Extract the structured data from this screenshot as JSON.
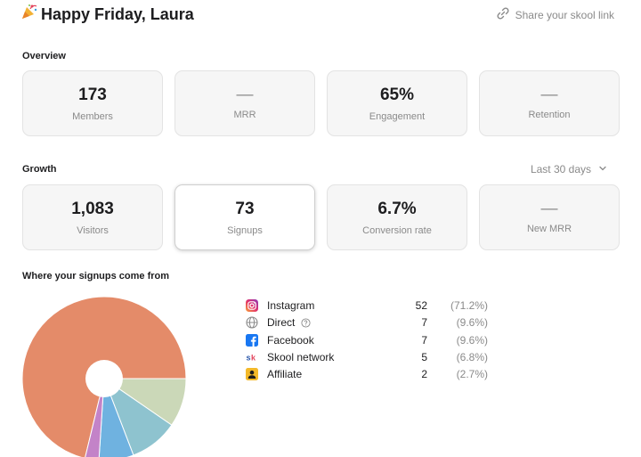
{
  "header": {
    "greeting": "Happy Friday, Laura",
    "share_label": "Share your skool link"
  },
  "overview": {
    "title": "Overview",
    "cards": [
      {
        "value": "173",
        "label": "Members"
      },
      {
        "value": "—",
        "label": "MRR"
      },
      {
        "value": "65%",
        "label": "Engagement"
      },
      {
        "value": "—",
        "label": "Retention"
      }
    ]
  },
  "growth": {
    "title": "Growth",
    "period": "Last 30 days",
    "cards": [
      {
        "value": "1,083",
        "label": "Visitors"
      },
      {
        "value": "73",
        "label": "Signups"
      },
      {
        "value": "6.7%",
        "label": "Conversion rate"
      },
      {
        "value": "—",
        "label": "New MRR"
      }
    ]
  },
  "signups": {
    "title": "Where your signups come from",
    "sources": [
      {
        "name": "Instagram",
        "count": "52",
        "percent": "(71.2%)",
        "icon": "instagram-icon"
      },
      {
        "name": "Direct",
        "count": "7",
        "percent": "(9.6%)",
        "icon": "globe-icon"
      },
      {
        "name": "Facebook",
        "count": "7",
        "percent": "(9.6%)",
        "icon": "facebook-icon"
      },
      {
        "name": "Skool network",
        "count": "5",
        "percent": "(6.8%)",
        "icon": "skool-icon"
      },
      {
        "name": "Affiliate",
        "count": "2",
        "percent": "(2.7%)",
        "icon": "affiliate-icon"
      }
    ]
  },
  "chart_data": {
    "type": "pie",
    "categories": [
      "Instagram",
      "Direct",
      "Facebook",
      "Skool network",
      "Affiliate"
    ],
    "values": [
      52,
      7,
      7,
      5,
      2
    ],
    "colors": [
      "#e48b69",
      "#cbd8b8",
      "#8ec3cf",
      "#6fb2e0",
      "#c383c8"
    ]
  }
}
